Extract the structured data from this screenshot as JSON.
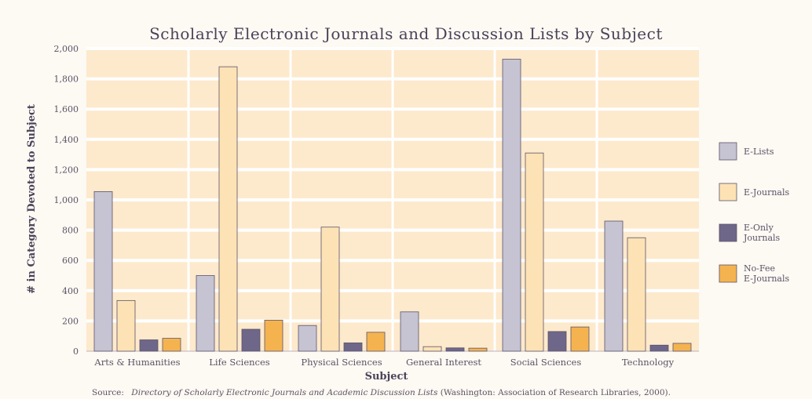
{
  "chart_data": {
    "type": "bar",
    "title": "Scholarly Electronic Journals and Discussion Lists by Subject",
    "xlabel": "Subject",
    "ylabel": "# in Category Devoted to Subject",
    "ylim": [
      0,
      2000
    ],
    "yticks": [
      "0",
      "200",
      "400",
      "600",
      "800",
      "1,000",
      "1,200",
      "1,400",
      "1,600",
      "1,800",
      "2,000"
    ],
    "grid": true,
    "legend_position": "right",
    "categories": [
      "Arts & Humanities",
      "Life Sciences",
      "Physical Sciences",
      "General Interest",
      "Social Sciences",
      "Technology"
    ],
    "series": [
      {
        "name": "E-Lists",
        "color": "#c6c3d3",
        "values": [
          1055,
          500,
          170,
          260,
          1930,
          860
        ]
      },
      {
        "name": "E-Journals",
        "color": "#fde2b5",
        "values": [
          335,
          1880,
          820,
          30,
          1310,
          750
        ]
      },
      {
        "name": "E-Only Journals",
        "color": "#6e6789",
        "values": [
          75,
          145,
          55,
          22,
          130,
          40
        ]
      },
      {
        "name": "No-Fee E-Journals",
        "color": "#f5b34f",
        "values": [
          85,
          205,
          125,
          20,
          160,
          52
        ]
      }
    ],
    "source_label": "Source:",
    "source_text": "Directory of Scholarly Electronic Journals and Academic Discussion Lists",
    "source_suffix": "(Washington: Association of Research Libraries, 2000)."
  },
  "colors": {
    "plot_background": "#fde9cc",
    "gridline": "#ffffff",
    "bar_stroke": "#5b546a",
    "text": "#4a4258"
  }
}
